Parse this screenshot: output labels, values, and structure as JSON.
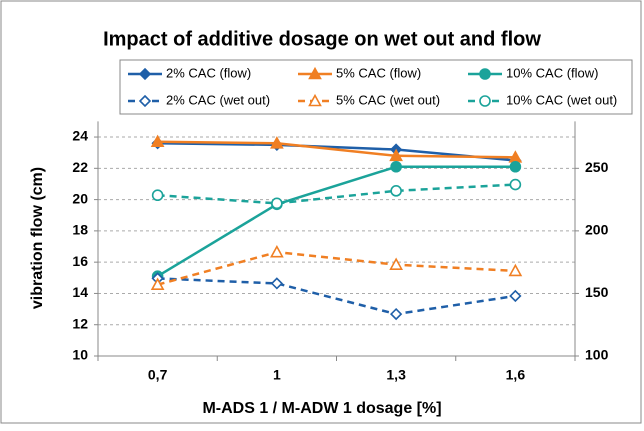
{
  "chart_data": {
    "type": "line",
    "title": "Impact of additive dosage on wet out and flow",
    "xlabel": "M-ADS 1 / M-ADW 1 dosage [%]",
    "ylabel": "vibration flow (cm)",
    "categories": [
      "0,7",
      "1",
      "1,3",
      "1,6"
    ],
    "ylim": [
      10,
      25
    ],
    "yticks": [
      10,
      12,
      14,
      16,
      18,
      20,
      22,
      24
    ],
    "y2lim": [
      100,
      287.5
    ],
    "y2ticks": [
      100,
      150,
      200,
      250
    ],
    "grid": true,
    "series": [
      {
        "name": "2% CAC (flow)",
        "color": "#1f5fa8",
        "marker": "diamond",
        "dashed": false,
        "values": [
          23.6,
          23.5,
          23.2,
          22.5
        ]
      },
      {
        "name": "5% CAC (flow)",
        "color": "#f07f23",
        "marker": "triangle",
        "dashed": false,
        "values": [
          23.7,
          23.6,
          22.8,
          22.7
        ]
      },
      {
        "name": "10% CAC (flow)",
        "color": "#1ba39a",
        "marker": "circle",
        "dashed": false,
        "values": [
          15.1,
          19.7,
          22.1,
          22.1
        ]
      },
      {
        "name": "2% CAC (wet out)",
        "color": "#1f5fa8",
        "marker": "diamond",
        "dashed": true,
        "axis": "y2",
        "values": [
          162,
          158,
          133.5,
          148
        ]
      },
      {
        "name": "5% CAC (wet out)",
        "color": "#f07f23",
        "marker": "triangle",
        "dashed": true,
        "axis": "y2",
        "values": [
          157,
          183,
          173,
          168
        ]
      },
      {
        "name": "10% CAC (wet out)",
        "color": "#1ba39a",
        "marker": "circle",
        "dashed": true,
        "axis": "y2",
        "values": [
          228.5,
          222,
          232,
          237
        ]
      }
    ]
  }
}
